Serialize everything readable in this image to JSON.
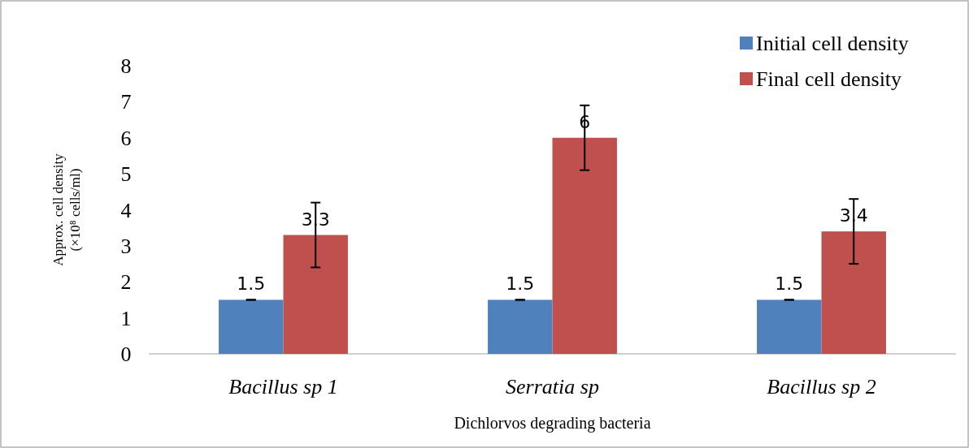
{
  "chart_data": {
    "type": "bar",
    "categories": [
      "Bacillus sp 1",
      "Serratia sp",
      "Bacillus sp 2"
    ],
    "series": [
      {
        "name": "Initial cell density",
        "color": "#4f81bd",
        "values": [
          1.5,
          1.5,
          1.5
        ],
        "errors": [
          0,
          0,
          0
        ]
      },
      {
        "name": "Final cell density",
        "color": "#c0504d",
        "values": [
          3.3,
          6,
          3.4
        ],
        "errors": [
          0.9,
          0.9,
          0.9
        ]
      }
    ],
    "xlabel": "Dichlorvos degrading bacteria",
    "ylabel": "Approx. cell density\n(×10⁸ cells/ml)",
    "ylim": [
      0,
      8
    ],
    "yticks": [
      0,
      1,
      2,
      3,
      4,
      5,
      6,
      7,
      8
    ],
    "grid": false,
    "legend": "top right",
    "data_labels": true
  }
}
